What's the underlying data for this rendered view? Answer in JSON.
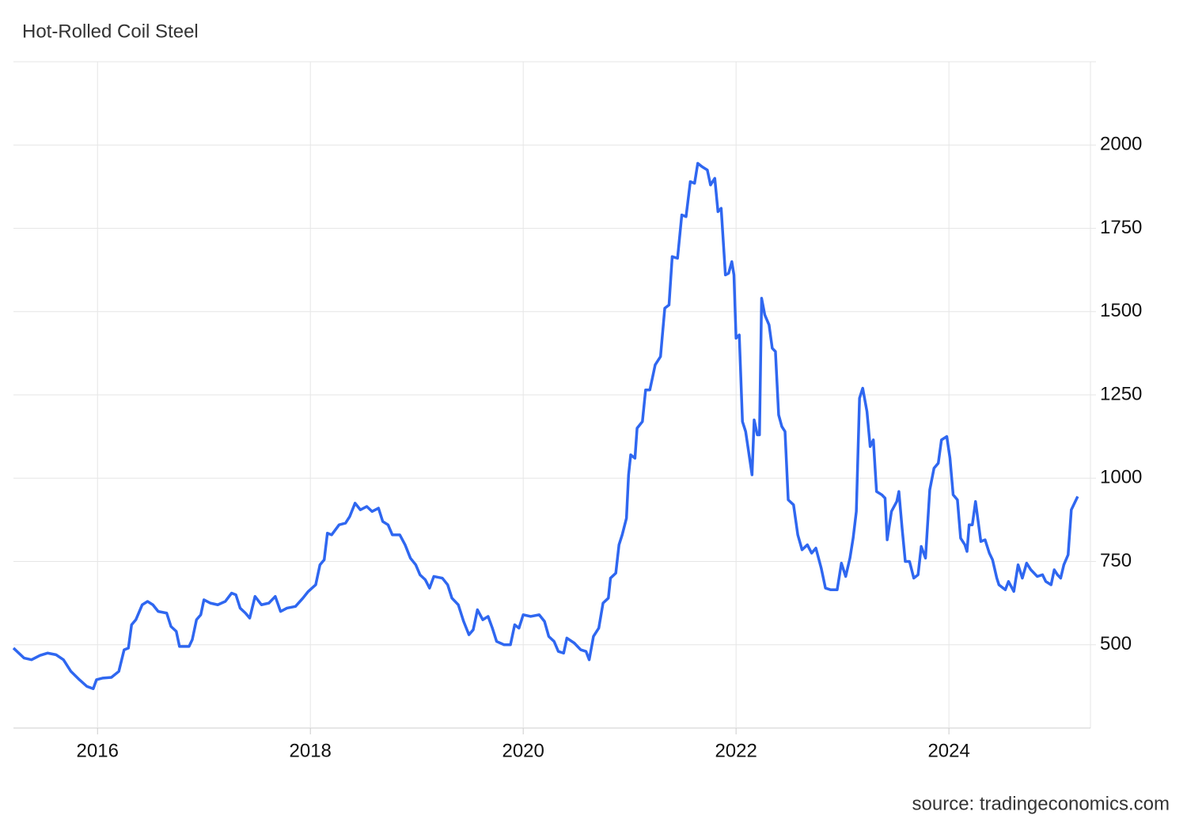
{
  "chart_data": {
    "type": "line",
    "title": "Hot-Rolled Coil Steel",
    "source": "source: tradingeconomics.com",
    "xlim": [
      2015.21,
      2025.33
    ],
    "ylim": [
      250,
      2250
    ],
    "xticks": [
      2016,
      2018,
      2020,
      2022,
      2024
    ],
    "yticks": [
      500,
      750,
      1000,
      1250,
      1500,
      1750,
      2000
    ],
    "grid": true,
    "series": [
      {
        "name": "Hot-Rolled Coil Steel",
        "color": "#2f67f0",
        "x": [
          2015.21,
          2015.31,
          2015.38,
          2015.46,
          2015.53,
          2015.61,
          2015.68,
          2015.75,
          2015.83,
          2015.9,
          2015.96,
          2015.99,
          2016.05,
          2016.13,
          2016.2,
          2016.25,
          2016.29,
          2016.32,
          2016.36,
          2016.42,
          2016.47,
          2016.52,
          2016.57,
          2016.65,
          2016.69,
          2016.74,
          2016.77,
          2016.86,
          2016.89,
          2016.93,
          2016.97,
          2017.0,
          2017.06,
          2017.13,
          2017.2,
          2017.26,
          2017.3,
          2017.34,
          2017.39,
          2017.43,
          2017.48,
          2017.54,
          2017.61,
          2017.67,
          2017.72,
          2017.78,
          2017.86,
          2017.93,
          2017.98,
          2018.05,
          2018.09,
          2018.13,
          2018.16,
          2018.2,
          2018.27,
          2018.33,
          2018.37,
          2018.42,
          2018.47,
          2018.53,
          2018.58,
          2018.64,
          2018.68,
          2018.73,
          2018.77,
          2018.84,
          2018.89,
          2018.94,
          2018.99,
          2019.03,
          2019.08,
          2019.12,
          2019.16,
          2019.24,
          2019.29,
          2019.33,
          2019.39,
          2019.44,
          2019.49,
          2019.53,
          2019.57,
          2019.62,
          2019.67,
          2019.71,
          2019.75,
          2019.82,
          2019.88,
          2019.92,
          2019.96,
          2020.0,
          2020.07,
          2020.15,
          2020.2,
          2020.24,
          2020.29,
          2020.33,
          2020.38,
          2020.41,
          2020.48,
          2020.54,
          2020.59,
          2020.62,
          2020.66,
          2020.71,
          2020.75,
          2020.8,
          2020.82,
          2020.87,
          2020.9,
          2020.93,
          2020.97,
          2020.99,
          2021.01,
          2021.05,
          2021.07,
          2021.12,
          2021.15,
          2021.19,
          2021.24,
          2021.29,
          2021.33,
          2021.37,
          2021.4,
          2021.45,
          2021.49,
          2021.53,
          2021.57,
          2021.61,
          2021.64,
          2021.68,
          2021.73,
          2021.76,
          2021.8,
          2021.83,
          2021.86,
          2021.9,
          2021.93,
          2021.96,
          2021.98,
          2022.0,
          2022.03,
          2022.06,
          2022.09,
          2022.12,
          2022.15,
          2022.17,
          2022.2,
          2022.22,
          2022.24,
          2022.27,
          2022.31,
          2022.34,
          2022.37,
          2022.4,
          2022.43,
          2022.46,
          2022.49,
          2022.54,
          2022.58,
          2022.62,
          2022.67,
          2022.71,
          2022.75,
          2022.8,
          2022.84,
          2022.89,
          2022.95,
          2022.99,
          2023.03,
          2023.07,
          2023.1,
          2023.13,
          2023.16,
          2023.19,
          2023.23,
          2023.26,
          2023.29,
          2023.32,
          2023.37,
          2023.4,
          2023.42,
          2023.46,
          2023.51,
          2023.53,
          2023.56,
          2023.59,
          2023.63,
          2023.67,
          2023.71,
          2023.74,
          2023.78,
          2023.82,
          2023.86,
          2023.9,
          2023.93,
          2023.98,
          2024.01,
          2024.04,
          2024.08,
          2024.11,
          2024.15,
          2024.17,
          2024.19,
          2024.22,
          2024.25,
          2024.3,
          2024.34,
          2024.38,
          2024.41,
          2024.45,
          2024.47,
          2024.53,
          2024.56,
          2024.61,
          2024.65,
          2024.69,
          2024.73,
          2024.77,
          2024.83,
          2024.88,
          2024.91,
          2024.96,
          2024.99,
          2025.02,
          2025.05,
          2025.08,
          2025.12,
          2025.15,
          2025.21
        ],
        "values": [
          490,
          460,
          455,
          468,
          475,
          470,
          455,
          420,
          395,
          375,
          368,
          395,
          400,
          402,
          420,
          485,
          490,
          560,
          575,
          620,
          630,
          620,
          600,
          595,
          555,
          540,
          495,
          495,
          515,
          575,
          590,
          635,
          625,
          620,
          630,
          655,
          650,
          610,
          595,
          580,
          645,
          620,
          625,
          645,
          600,
          610,
          615,
          640,
          660,
          680,
          740,
          755,
          835,
          830,
          860,
          865,
          885,
          925,
          905,
          915,
          900,
          910,
          870,
          860,
          830,
          830,
          800,
          760,
          740,
          710,
          695,
          670,
          705,
          700,
          680,
          640,
          620,
          570,
          530,
          545,
          605,
          575,
          585,
          550,
          510,
          500,
          500,
          560,
          550,
          590,
          585,
          590,
          570,
          525,
          510,
          480,
          475,
          520,
          505,
          485,
          480,
          455,
          525,
          550,
          625,
          640,
          700,
          715,
          800,
          830,
          880,
          1010,
          1070,
          1060,
          1150,
          1170,
          1265,
          1265,
          1340,
          1365,
          1510,
          1520,
          1665,
          1660,
          1790,
          1785,
          1890,
          1885,
          1945,
          1935,
          1925,
          1880,
          1900,
          1800,
          1810,
          1610,
          1615,
          1650,
          1610,
          1420,
          1430,
          1170,
          1140,
          1075,
          1010,
          1175,
          1130,
          1130,
          1540,
          1490,
          1460,
          1390,
          1380,
          1190,
          1155,
          1140,
          935,
          920,
          830,
          785,
          800,
          775,
          790,
          730,
          670,
          665,
          665,
          745,
          705,
          760,
          820,
          900,
          1240,
          1270,
          1200,
          1095,
          1115,
          960,
          950,
          940,
          815,
          900,
          930,
          960,
          850,
          750,
          750,
          700,
          710,
          795,
          760,
          965,
          1030,
          1045,
          1115,
          1125,
          1060,
          950,
          935,
          820,
          800,
          780,
          860,
          860,
          930,
          810,
          815,
          775,
          755,
          700,
          680,
          665,
          690,
          660,
          740,
          700,
          745,
          725,
          705,
          710,
          690,
          680,
          725,
          710,
          700,
          740,
          770,
          905,
          945
        ]
      }
    ]
  }
}
